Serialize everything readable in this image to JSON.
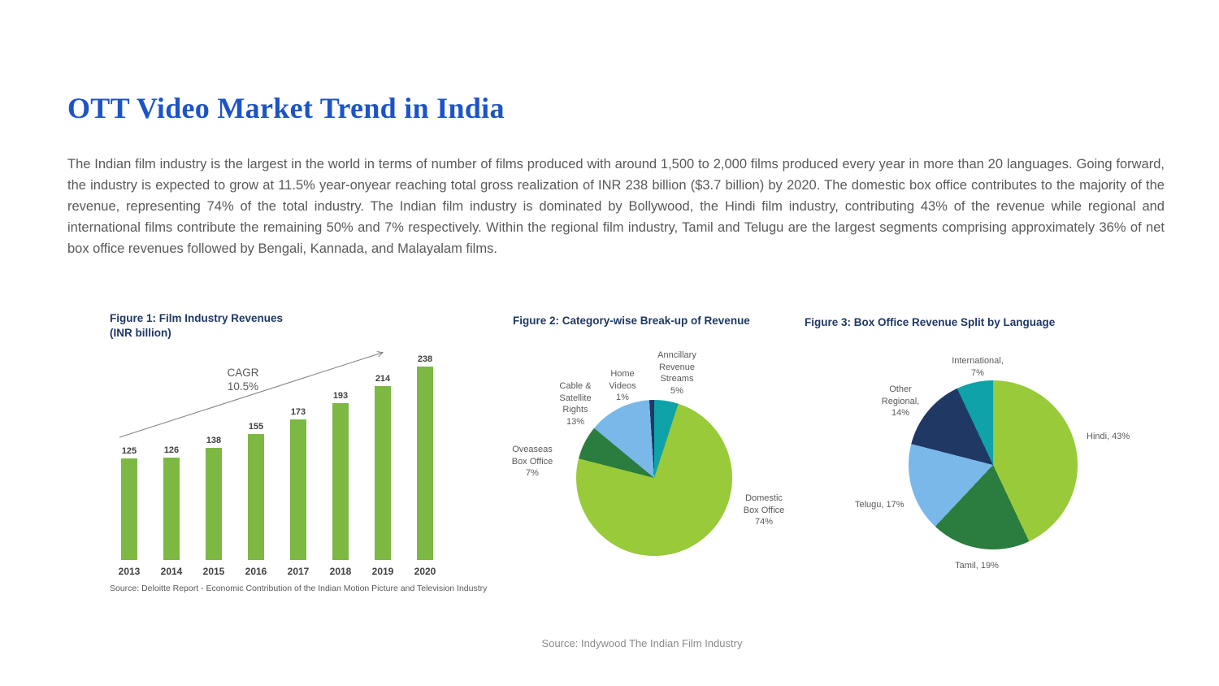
{
  "page": {
    "title": "OTT Video Market Trend in India",
    "intro": "The Indian film industry is the largest in the world in terms of number of films produced with around 1,500 to 2,000 films produced every year in more than 20 languages. Going forward, the industry is expected to grow at 11.5% year-onyear reaching total gross realization of INR 238 billion ($3.7 billion) by 2020. The domestic box office contributes to the majority of the revenue, representing 74% of the total industry. The Indian film industry is dominated by Bollywood, the Hindi film industry, contributing 43% of the revenue while regional and international films contribute the remaining 50% and 7% respectively. Within the regional film industry, Tamil and Telugu are the largest segments comprising approximately 36% of net box office revenues followed by Bengali, Kannada, and Malayalam films.",
    "footer_source": "Source: Indywood The Indian Film Industry",
    "accent_title_color": "#1C54C7",
    "figure_title_color": "#1F3864"
  },
  "chart_data": [
    {
      "type": "bar",
      "title": "Figure 1:  Film Industry Revenues",
      "subtitle": "(INR billion)",
      "categories": [
        "2013",
        "2014",
        "2015",
        "2016",
        "2017",
        "2018",
        "2019",
        "2020"
      ],
      "values": [
        125,
        126,
        138,
        155,
        173,
        193,
        214,
        238
      ],
      "annotation": {
        "label": "CAGR",
        "value": "10.5%"
      },
      "bar_color": "#7DB843",
      "ylim": [
        0,
        250
      ],
      "grid": false,
      "legend": "none",
      "source": "Source: Deloitte Report - Economic Contribution of the Indian Motion Picture and Television Industry"
    },
    {
      "type": "pie",
      "title": "Figure 2:  Category-wise Break-up of Revenue",
      "slices": [
        {
          "name": "Anncillary Revenue Streams",
          "value": 5,
          "color": "#0FA2A9",
          "label_display": "Anncillary\nRevenue\nStreams\n5%"
        },
        {
          "name": "Domestic Box Office",
          "value": 74,
          "color": "#98CA3A",
          "label_display": "Domestic\nBox Office\n74%"
        },
        {
          "name": "Oveaseas Box Office",
          "value": 7,
          "color": "#2A7D3F",
          "label_display": "Oveaseas\nBox Office\n7%"
        },
        {
          "name": "Cable & Satellite Rights",
          "value": 13,
          "color": "#79B8E8",
          "label_display": "Cable &\nSatellite\nRights\n13%"
        },
        {
          "name": "Home Videos",
          "value": 1,
          "color": "#203864",
          "label_display": "Home\nVideos\n1%"
        }
      ]
    },
    {
      "type": "pie",
      "title": "Figure 3:  Box Office Revenue Split by Language",
      "slices": [
        {
          "name": "Hindi",
          "value": 43,
          "color": "#98CA3A",
          "label_display": "Hindi, 43%"
        },
        {
          "name": "Tamil",
          "value": 19,
          "color": "#2A7D3F",
          "label_display": "Tamil, 19%"
        },
        {
          "name": "Telugu",
          "value": 17,
          "color": "#79B8E8",
          "label_display": "Telugu, 17%"
        },
        {
          "name": "Other Regional",
          "value": 14,
          "color": "#203864",
          "label_display": "Other\nRegional,\n14%"
        },
        {
          "name": "International",
          "value": 7,
          "color": "#0FA2A9",
          "label_display": "International,\n7%"
        }
      ]
    }
  ]
}
